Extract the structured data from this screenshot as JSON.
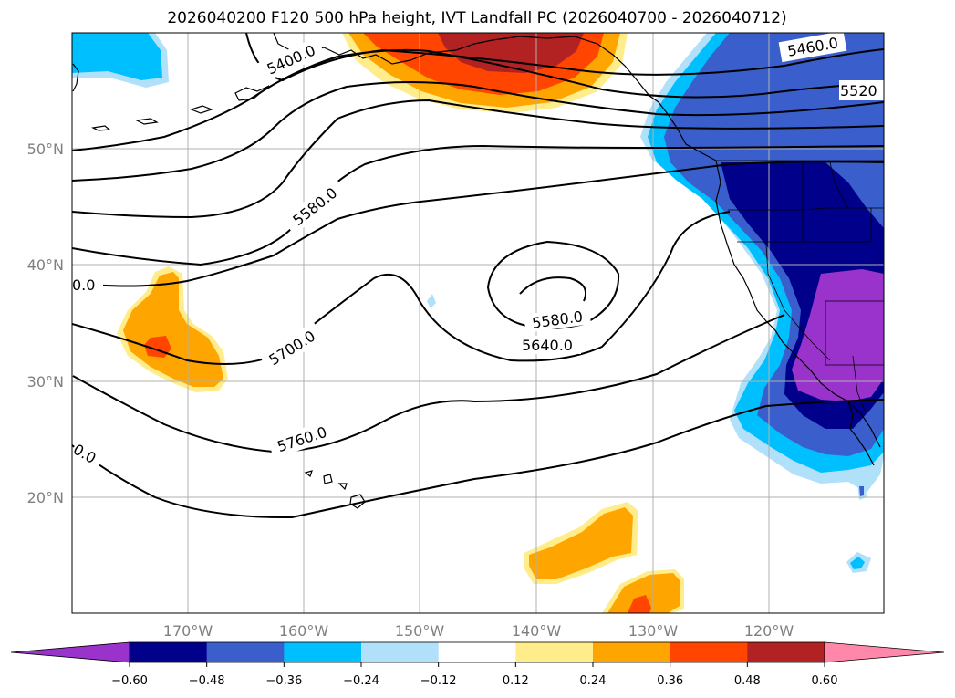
{
  "title": "2026040200 F120 500 hPa height, IVT Landfall PC (2026040700 - 2026040712)",
  "lat_labels": [
    "50°N",
    "40°N",
    "30°N",
    "20°N"
  ],
  "lon_labels": [
    "170°W",
    "160°W",
    "150°W",
    "140°W",
    "130°W",
    "120°W"
  ],
  "colorbar": {
    "ticks": [
      "−0.60",
      "−0.48",
      "−0.36",
      "−0.24",
      "−0.12",
      "0.12",
      "0.24",
      "0.36",
      "0.48",
      "0.60"
    ],
    "colors": [
      "#9933cc",
      "#00008b",
      "#3a5fcd",
      "#00bfff",
      "#b0e0fa",
      "#ffffff",
      "#ffec8b",
      "#ffa500",
      "#ff4500",
      "#b22222",
      "#ff88aa"
    ],
    "extend": "both"
  },
  "contours": {
    "c5400": "5400.0",
    "c5460": "5460.0",
    "c5520": "5520",
    "c5580a": "5580.0",
    "c5580b": "5580.0",
    "c5640": "5640.0",
    "c5700": "5700.0",
    "c5760": "5760.0",
    "c0left": "0.0",
    "c0bottom": "0.0"
  },
  "colors": {
    "contour": "#000000",
    "grid": "#b0b0b0",
    "coast": "#000000"
  }
}
